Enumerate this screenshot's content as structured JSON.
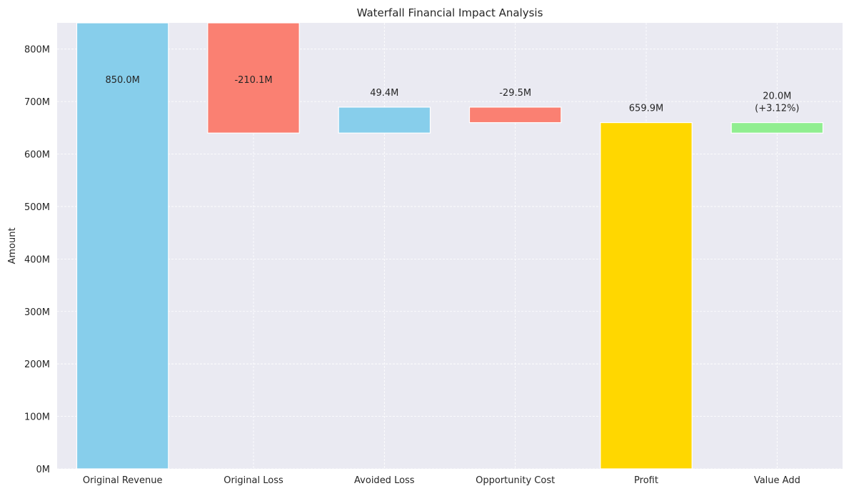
{
  "chart_data": {
    "type": "bar",
    "title": "Waterfall Financial Impact Analysis",
    "xlabel": "",
    "ylabel": "Amount",
    "ylim": [
      0,
      850
    ],
    "yticks": [
      0,
      100,
      200,
      300,
      400,
      500,
      600,
      700,
      800
    ],
    "ytick_labels": [
      "0M",
      "100M",
      "200M",
      "300M",
      "400M",
      "500M",
      "600M",
      "700M",
      "800M"
    ],
    "grid": true,
    "categories": [
      "Original Revenue",
      "Original Loss",
      "Avoided Loss",
      "Opportunity Cost",
      "Profit",
      "Value Add"
    ],
    "bars": [
      {
        "category": "Original Revenue",
        "bottom": 0,
        "top": 850,
        "label": "850.0M",
        "color": "#87CEEB"
      },
      {
        "category": "Original Loss",
        "bottom": 640,
        "top": 850,
        "label": "-210.1M",
        "color": "#FA8072"
      },
      {
        "category": "Avoided Loss",
        "bottom": 640,
        "top": 689.4,
        "label": "49.4M",
        "color": "#87CEEB"
      },
      {
        "category": "Opportunity Cost",
        "bottom": 659.9,
        "top": 689.4,
        "label": "-29.5M",
        "color": "#FA8072"
      },
      {
        "category": "Profit",
        "bottom": 0,
        "top": 659.9,
        "label": "659.9M",
        "color": "#FFD700"
      },
      {
        "category": "Value Add",
        "bottom": 639.9,
        "top": 659.9,
        "label": "20.0M\n(+3.12%)",
        "color": "#90EE90"
      }
    ],
    "colors": {
      "background": "#EAEAF2",
      "grid": "#FFFFFF"
    }
  }
}
